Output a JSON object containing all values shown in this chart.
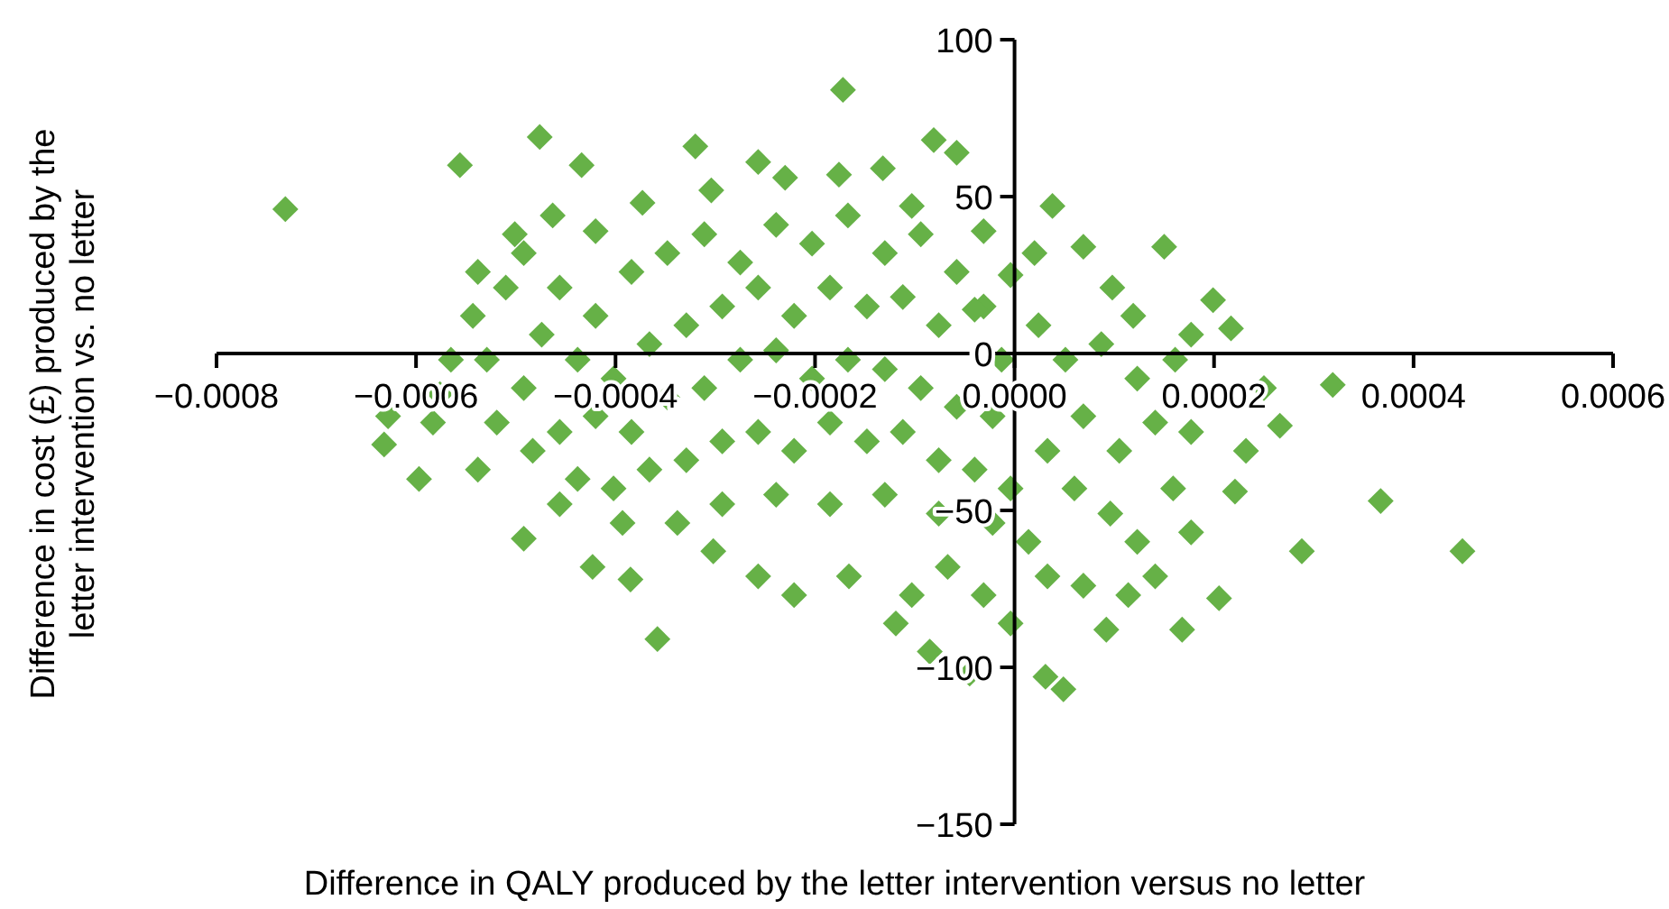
{
  "chart_data": {
    "type": "scatter",
    "xlabel": "Difference in QALY produced by the letter intervention versus no letter",
    "ylabel": "Difference in cost (£) produced by the letter intervention vs. no letter",
    "marker": "diamond",
    "grid": false,
    "xlim": [
      -0.0008,
      0.0006
    ],
    "xticks": [
      {
        "value": -0.0008,
        "label": "−0.0008"
      },
      {
        "value": -0.0006,
        "label": "−0.0006"
      },
      {
        "value": -0.0004,
        "label": "−0.0004"
      },
      {
        "value": -0.0002,
        "label": "−0.0002"
      },
      {
        "value": 0,
        "label": "0.0000"
      },
      {
        "value": 0.0002,
        "label": "0.0002"
      },
      {
        "value": 0.0004,
        "label": "0.0004"
      },
      {
        "value": 0.0006,
        "label": "0.0006"
      }
    ],
    "ylim": [
      -150,
      100
    ],
    "yticks": [
      100,
      50,
      0,
      {
        "value": -50,
        "label": "−50"
      },
      {
        "value": -100,
        "label": "−100"
      },
      {
        "value": -150,
        "label": "−150"
      }
    ],
    "series": [
      {
        "color": "#66b147",
        "x": [
          -0.000731,
          -0.000172,
          -0.000556,
          -0.000476,
          -0.000434,
          -0.00032,
          -8.1e-05,
          -5.8e-05,
          3.8e-05,
          6.9e-05,
          0.00015,
          0.000199,
          0.000217,
          0.000319,
          0.000266,
          0.000367,
          0.000449,
          0.000288,
          0.000205,
          0.000168,
          9.2e-05,
          4.9e-05,
          3.1e-05,
          -4.5e-05,
          -8.5e-05,
          -0.000119,
          -0.000358,
          -0.000385,
          -0.000423,
          -0.000492,
          -0.000597,
          -0.000632,
          -0.000576,
          -0.000538,
          -0.000628,
          -0.000543,
          -0.000492,
          -0.000463,
          -0.00042,
          -0.000373,
          -0.000304,
          -0.000257,
          -0.00023,
          -0.000176,
          -0.000132,
          -0.000103,
          -3.1e-05,
          -4e-06,
          2e-05,
          9.8e-05,
          0.000119,
          0.000177,
          0.000161,
          0.00025,
          0.000232,
          0.000221,
          0.000177,
          0.000141,
          0.000114,
          6.9e-05,
          3.3e-05,
          -4e-06,
          -3.1e-05,
          -6.7e-05,
          -0.000103,
          -0.000166,
          -0.000221,
          -0.000257,
          -0.000302,
          -0.000338,
          -0.000393,
          -0.000438,
          -0.000483,
          -0.000519,
          -0.000583,
          -0.000456,
          -0.00042,
          -0.000384,
          -0.000348,
          -0.000311,
          -0.000275,
          -0.000239,
          -0.000203,
          -0.000167,
          -0.00013,
          -9.4e-05,
          -5.8e-05,
          -3.1e-05,
          -0.000438,
          -0.000402,
          -0.000366,
          -0.000329,
          -0.000293,
          -0.000257,
          -0.000221,
          -0.000185,
          -0.000148,
          -0.000112,
          -7.6e-05,
          -4e-05,
          -1.3e-05,
          -0.00042,
          -0.000384,
          -0.000348,
          -0.000311,
          -0.000275,
          -0.000239,
          -0.000203,
          -0.000167,
          -0.00013,
          -9.4e-05,
          -5.8e-05,
          -2.2e-05,
          -0.000366,
          -0.000329,
          -0.000293,
          -0.000257,
          -0.000221,
          -0.000185,
          -0.000148,
          -0.000112,
          -7.6e-05,
          -4e-05,
          -4e-06,
          -0.000293,
          -0.000239,
          -0.000185,
          -0.00013,
          -7.6e-05,
          -2.2e-05,
          2.4e-05,
          5.1e-05,
          8.7e-05,
          0.000123,
          6.9e-05,
          0.000105,
          3.3e-05,
          0.000141,
          6e-05,
          9.6e-05,
          0.000159,
          1.4e-05,
          0.000123,
          0.000177,
          -0.000529,
          -0.00051,
          -0.000474,
          -0.000565,
          -0.000492,
          -0.000456,
          -0.000501,
          -0.000538,
          -0.000402,
          -0.000456
        ],
        "values": [
          46,
          84,
          60,
          69,
          60,
          66,
          68,
          64,
          47,
          34,
          34,
          17,
          8,
          -10,
          -23,
          -47,
          -63,
          -63,
          -78,
          -88,
          -88,
          -107,
          -103,
          -102,
          -95,
          -86,
          -91,
          -72,
          -68,
          -59,
          -40,
          -29,
          -13,
          -37,
          -20,
          12,
          32,
          44,
          39,
          48,
          52,
          61,
          56,
          57,
          59,
          47,
          39,
          25,
          32,
          21,
          12,
          6,
          -2,
          -11,
          -31,
          -44,
          -57,
          -71,
          -77,
          -74,
          -71,
          -86,
          -77,
          -68,
          -77,
          -71,
          -77,
          -71,
          -63,
          -54,
          -54,
          -40,
          -31,
          -22,
          -22,
          21,
          12,
          26,
          32,
          38,
          29,
          41,
          35,
          44,
          32,
          38,
          26,
          15,
          -2,
          -8,
          3,
          9,
          15,
          21,
          12,
          21,
          15,
          18,
          9,
          14,
          -2,
          -20,
          -25,
          -14,
          -11,
          -2,
          1,
          -8,
          -2,
          -5,
          -11,
          -17,
          -20,
          -37,
          -34,
          -28,
          -25,
          -31,
          -22,
          -28,
          -25,
          -34,
          -37,
          -43,
          -48,
          -45,
          -48,
          -45,
          -51,
          -54,
          9,
          -2,
          3,
          -8,
          -20,
          -31,
          -31,
          -22,
          -43,
          -51,
          -43,
          -60,
          -60,
          -25,
          -2,
          21,
          6,
          -2,
          -11,
          -25,
          38,
          26,
          -43,
          -48
        ]
      }
    ]
  }
}
